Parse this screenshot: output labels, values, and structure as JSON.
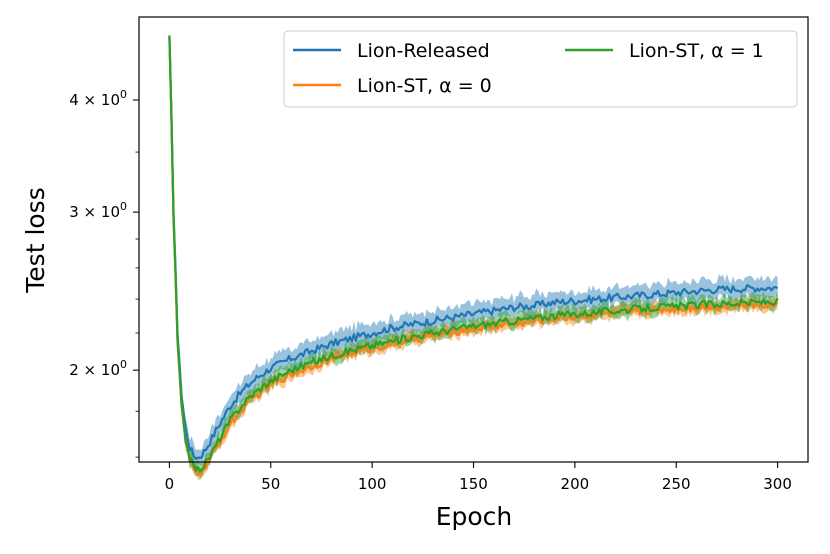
{
  "chart_data": {
    "type": "line",
    "xlabel": "Epoch",
    "ylabel": "Test loss",
    "xlim": [
      -15,
      315
    ],
    "ylim": [
      1.58,
      4.95
    ],
    "yscale": "log",
    "grid": false,
    "legend_position": "top-right",
    "x_ticks": [
      {
        "value": 0,
        "label": "0"
      },
      {
        "value": 50,
        "label": "50"
      },
      {
        "value": 100,
        "label": "100"
      },
      {
        "value": 150,
        "label": "150"
      },
      {
        "value": 200,
        "label": "200"
      },
      {
        "value": 250,
        "label": "250"
      },
      {
        "value": 300,
        "label": "300"
      }
    ],
    "y_ticks": [
      {
        "value": 2,
        "label_base": "2",
        "label_times": " × 10",
        "label_exp": "0"
      },
      {
        "value": 3,
        "label_base": "3",
        "label_times": " × 10",
        "label_exp": "0"
      },
      {
        "value": 4,
        "label_base": "4",
        "label_times": " × 10",
        "label_exp": "0"
      }
    ],
    "x": [
      0,
      2,
      4,
      6,
      8,
      10,
      12,
      14,
      16,
      18,
      20,
      25,
      30,
      35,
      40,
      45,
      50,
      60,
      70,
      80,
      90,
      100,
      110,
      120,
      130,
      140,
      150,
      160,
      170,
      180,
      190,
      200,
      210,
      220,
      230,
      240,
      250,
      260,
      270,
      280,
      290,
      300
    ],
    "series": [
      {
        "name": "Lion-Released",
        "color": "#1f77b4",
        "values": [
          4.72,
          3.0,
          2.2,
          1.87,
          1.72,
          1.64,
          1.608,
          1.598,
          1.61,
          1.635,
          1.665,
          1.745,
          1.825,
          1.885,
          1.935,
          1.975,
          2.01,
          2.06,
          2.1,
          2.14,
          2.17,
          2.2,
          2.23,
          2.25,
          2.27,
          2.29,
          2.31,
          2.33,
          2.35,
          2.36,
          2.38,
          2.39,
          2.4,
          2.41,
          2.42,
          2.43,
          2.44,
          2.45,
          2.46,
          2.465,
          2.47,
          2.47
        ],
        "band": 0.035
      },
      {
        "name": "Lion-ST, α = 0",
        "color": "#ff7f0e",
        "values": [
          4.72,
          2.95,
          2.15,
          1.82,
          1.66,
          1.585,
          1.548,
          1.538,
          1.546,
          1.565,
          1.59,
          1.665,
          1.74,
          1.8,
          1.85,
          1.89,
          1.925,
          1.98,
          2.02,
          2.06,
          2.09,
          2.115,
          2.14,
          2.165,
          2.185,
          2.205,
          2.225,
          2.24,
          2.255,
          2.27,
          2.285,
          2.295,
          2.305,
          2.315,
          2.325,
          2.335,
          2.34,
          2.35,
          2.355,
          2.36,
          2.365,
          2.37
        ],
        "band": 0.022
      },
      {
        "name": "Lion-ST, α = 1",
        "color": "#2ca02c",
        "values": [
          4.72,
          2.97,
          2.17,
          1.835,
          1.675,
          1.598,
          1.56,
          1.55,
          1.558,
          1.578,
          1.603,
          1.68,
          1.757,
          1.82,
          1.87,
          1.91,
          1.945,
          2.0,
          2.04,
          2.075,
          2.105,
          2.13,
          2.155,
          2.18,
          2.2,
          2.22,
          2.24,
          2.255,
          2.27,
          2.285,
          2.3,
          2.31,
          2.32,
          2.33,
          2.34,
          2.35,
          2.355,
          2.365,
          2.37,
          2.375,
          2.38,
          2.385
        ],
        "band": 0.025
      }
    ]
  }
}
